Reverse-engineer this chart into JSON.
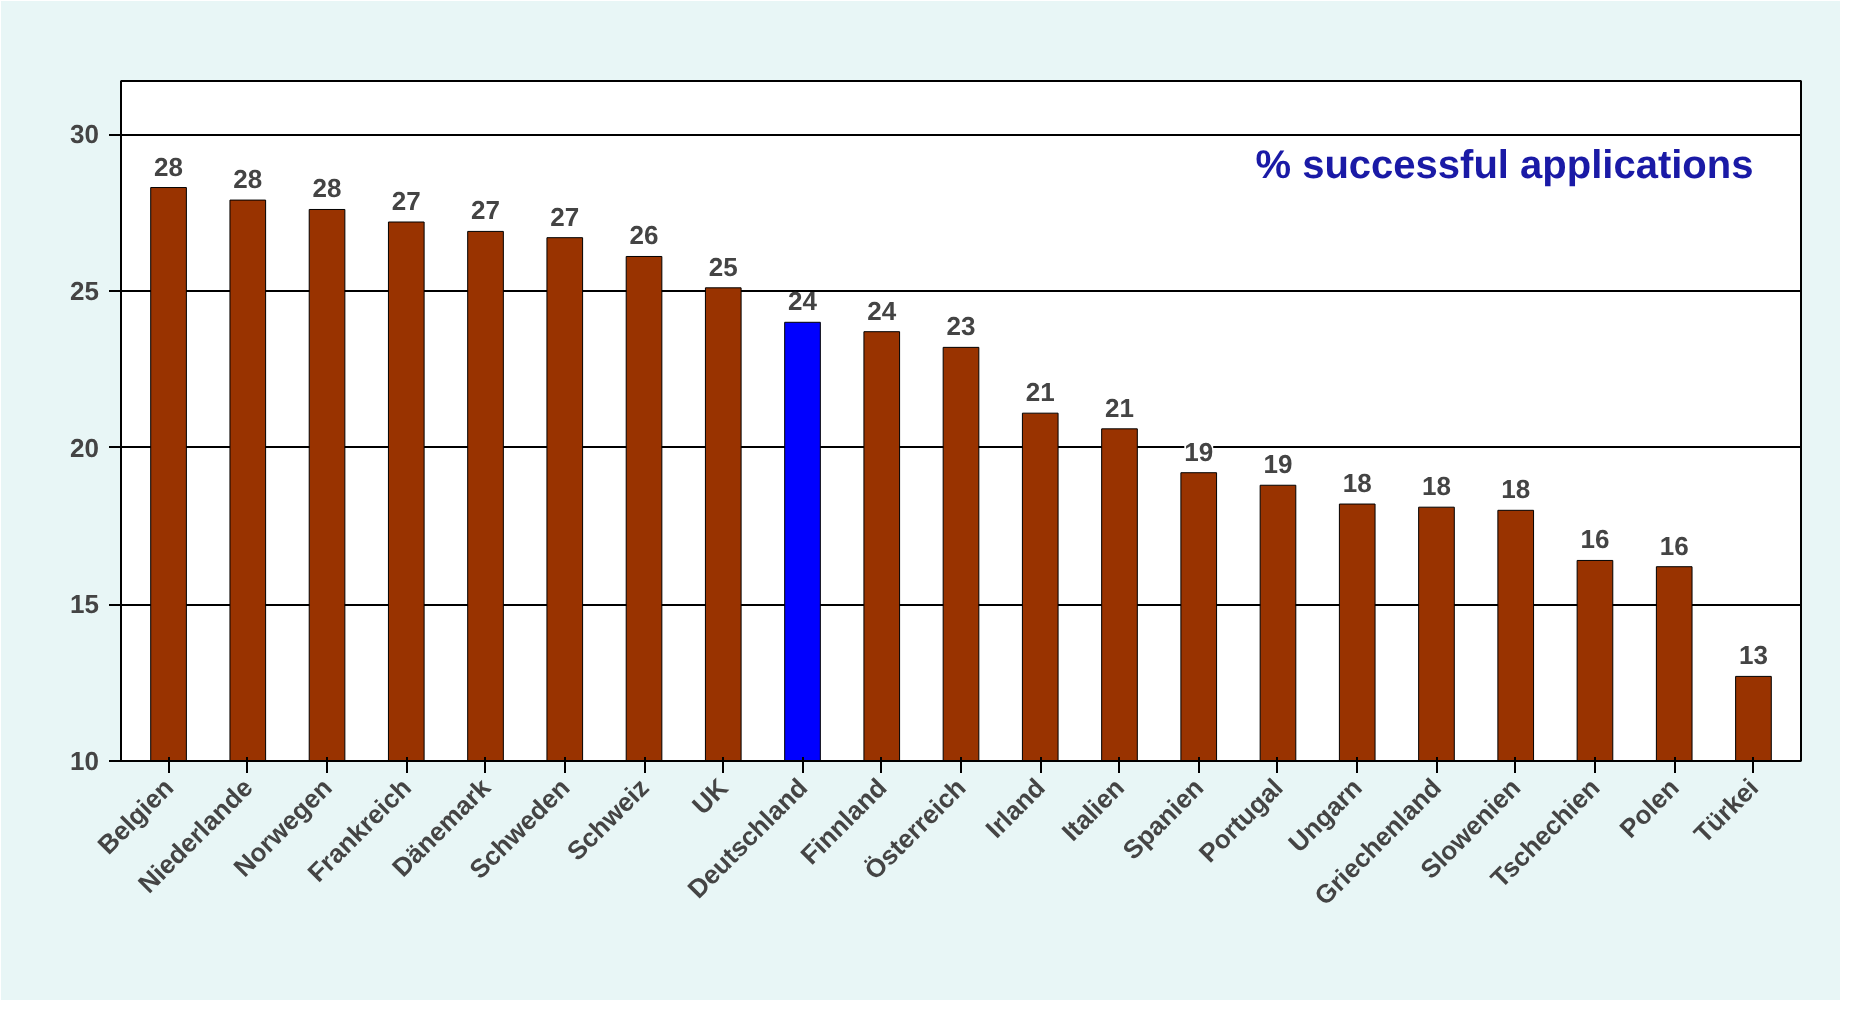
{
  "chart_data": {
    "type": "bar",
    "title": "% successful applications",
    "categories": [
      "Belgien",
      "Niederlande",
      "Norwegen",
      "Frankreich",
      "Dänemark",
      "Schweden",
      "Schweiz",
      "UK",
      "Deutschland",
      "Finnland",
      "Österreich",
      "Irland",
      "Italien",
      "Spanien",
      "Portugal",
      "Ungarn",
      "Griechenland",
      "Slowenien",
      "Tschechien",
      "Polen",
      "Türkei"
    ],
    "values": [
      28.3,
      27.9,
      27.6,
      27.2,
      26.9,
      26.7,
      26.1,
      25.1,
      24.0,
      23.7,
      23.2,
      21.1,
      20.6,
      19.2,
      18.8,
      18.2,
      18.1,
      18.0,
      16.4,
      16.2,
      12.7
    ],
    "value_labels": [
      "28",
      "28",
      "28",
      "27",
      "27",
      "27",
      "26",
      "25",
      "24",
      "24",
      "23",
      "21",
      "21",
      "19",
      "19",
      "18",
      "18",
      "18",
      "16",
      "16",
      "13"
    ],
    "colors": [
      "#993300",
      "#993300",
      "#993300",
      "#993300",
      "#993300",
      "#993300",
      "#993300",
      "#993300",
      "#0000ff",
      "#993300",
      "#993300",
      "#993300",
      "#993300",
      "#993300",
      "#993300",
      "#993300",
      "#993300",
      "#993300",
      "#993300",
      "#993300",
      "#993300"
    ],
    "ylim": [
      10,
      31.7
    ],
    "yticks": [
      10,
      15,
      20,
      25,
      30
    ],
    "grid": "y"
  }
}
